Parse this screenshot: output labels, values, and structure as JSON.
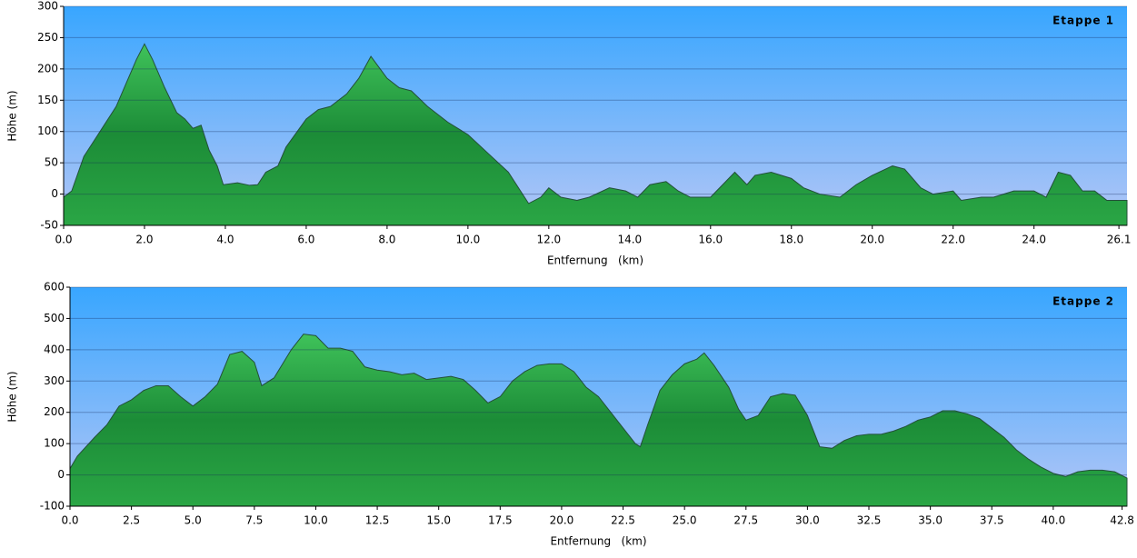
{
  "chart_data": [
    {
      "type": "area",
      "title": "Etappe 1",
      "x_label": "Entfernung   (km)",
      "y_label": "Höhe (m)",
      "color": "#1f9a3c",
      "grid": true,
      "xlim": [
        0,
        26.3
      ],
      "ylim": [
        -50,
        300
      ],
      "xticks": [
        {
          "value": 0,
          "label": "0.0"
        },
        {
          "value": 2,
          "label": "2.0"
        },
        {
          "value": 4,
          "label": "4.0"
        },
        {
          "value": 6,
          "label": "6.0"
        },
        {
          "value": 8,
          "label": "8.0"
        },
        {
          "value": 10,
          "label": "10.0"
        },
        {
          "value": 12,
          "label": "12.0"
        },
        {
          "value": 14,
          "label": "14.0"
        },
        {
          "value": 16,
          "label": "16.0"
        },
        {
          "value": 18,
          "label": "18.0"
        },
        {
          "value": 20,
          "label": "20.0"
        },
        {
          "value": 22,
          "label": "22.0"
        },
        {
          "value": 24,
          "label": "24.0"
        },
        26.1
      ],
      "yticks": [
        -50,
        0,
        50,
        100,
        150,
        200,
        250,
        300
      ],
      "x": [
        0,
        0.2,
        0.5,
        0.8,
        1.0,
        1.3,
        1.6,
        1.8,
        2.0,
        2.2,
        2.5,
        2.8,
        3.0,
        3.2,
        3.4,
        3.6,
        3.8,
        3.95,
        4.3,
        4.6,
        4.8,
        5.0,
        5.3,
        5.5,
        6.0,
        6.3,
        6.6,
        7.0,
        7.3,
        7.6,
        8.0,
        8.3,
        8.6,
        9.0,
        9.5,
        10.0,
        10.5,
        11.0,
        11.3,
        11.5,
        11.8,
        12.0,
        12.3,
        12.7,
        13.0,
        13.5,
        13.9,
        14.2,
        14.5,
        14.9,
        15.2,
        15.5,
        16.0,
        16.3,
        16.6,
        16.9,
        17.1,
        17.5,
        18.0,
        18.3,
        18.7,
        19.2,
        19.6,
        20.0,
        20.5,
        20.8,
        21.2,
        21.5,
        22.0,
        22.2,
        22.7,
        23.0,
        23.5,
        24.0,
        24.3,
        24.6,
        24.9,
        25.2,
        25.5,
        25.8,
        26.3
      ],
      "values": [
        -5,
        5,
        60,
        90,
        110,
        140,
        185,
        215,
        240,
        215,
        170,
        130,
        120,
        105,
        110,
        70,
        45,
        15,
        18,
        14,
        15,
        35,
        45,
        75,
        120,
        135,
        140,
        160,
        185,
        220,
        185,
        170,
        165,
        140,
        115,
        95,
        65,
        35,
        5,
        -15,
        -5,
        10,
        -5,
        -10,
        -5,
        10,
        5,
        -5,
        15,
        20,
        5,
        -5,
        -5,
        15,
        35,
        15,
        30,
        35,
        25,
        10,
        0,
        -5,
        15,
        30,
        45,
        40,
        10,
        0,
        5,
        -10,
        -5,
        -5,
        5,
        5,
        -5,
        35,
        30,
        5,
        5,
        -10,
        -10
      ]
    },
    {
      "type": "area",
      "title": "Etappe 2",
      "x_label": "Entfernung   (km)",
      "y_label": "Höhe (m)",
      "color": "#1f9a3c",
      "grid": true,
      "xlim": [
        0,
        43.0
      ],
      "ylim": [
        -100,
        600
      ],
      "xticks": [
        {
          "value": 0,
          "label": "0.0"
        },
        2.5,
        {
          "value": 5,
          "label": "5.0"
        },
        7.5,
        {
          "value": 10,
          "label": "10.0"
        },
        12.5,
        {
          "value": 15,
          "label": "15.0"
        },
        17.5,
        {
          "value": 20,
          "label": "20.0"
        },
        22.5,
        {
          "value": 25,
          "label": "25.0"
        },
        27.5,
        {
          "value": 30,
          "label": "30.0"
        },
        32.5,
        {
          "value": 35,
          "label": "35.0"
        },
        37.5,
        {
          "value": 40,
          "label": "40.0"
        },
        42.8
      ],
      "yticks": [
        -100,
        0,
        100,
        200,
        300,
        400,
        500,
        600
      ],
      "x": [
        0,
        0.3,
        1,
        1.5,
        2,
        2.5,
        3,
        3.5,
        4,
        4.5,
        5,
        5.5,
        6,
        6.5,
        7,
        7.5,
        7.8,
        8.3,
        9,
        9.5,
        10,
        10.5,
        11,
        11.5,
        12,
        12.5,
        13,
        13.5,
        14,
        14.5,
        15,
        15.5,
        16,
        16.5,
        17,
        17.5,
        18,
        18.5,
        19,
        19.5,
        20,
        20.5,
        21,
        21.5,
        22,
        22.5,
        23,
        23.2,
        23.5,
        24,
        24.5,
        25,
        25.5,
        25.8,
        26.2,
        26.8,
        27.2,
        27.5,
        28,
        28.5,
        29,
        29.5,
        30,
        30.5,
        31,
        31.5,
        32,
        32.5,
        33,
        33.5,
        34,
        34.5,
        35,
        35.5,
        36,
        36.5,
        37,
        37.5,
        38,
        38.5,
        39,
        39.5,
        40,
        40.5,
        41,
        41.5,
        42,
        42.5,
        43
      ],
      "values": [
        20,
        60,
        120,
        160,
        220,
        240,
        270,
        285,
        285,
        250,
        220,
        250,
        290,
        385,
        395,
        360,
        285,
        310,
        400,
        450,
        445,
        405,
        405,
        395,
        345,
        335,
        330,
        320,
        325,
        305,
        310,
        315,
        305,
        270,
        230,
        250,
        300,
        330,
        350,
        355,
        355,
        330,
        280,
        250,
        200,
        150,
        100,
        90,
        160,
        270,
        320,
        355,
        370,
        390,
        350,
        280,
        210,
        175,
        190,
        250,
        260,
        255,
        190,
        90,
        85,
        110,
        125,
        130,
        130,
        140,
        155,
        175,
        185,
        205,
        205,
        195,
        180,
        150,
        120,
        80,
        50,
        25,
        5,
        -5,
        10,
        15,
        15,
        10,
        -10
      ]
    }
  ]
}
